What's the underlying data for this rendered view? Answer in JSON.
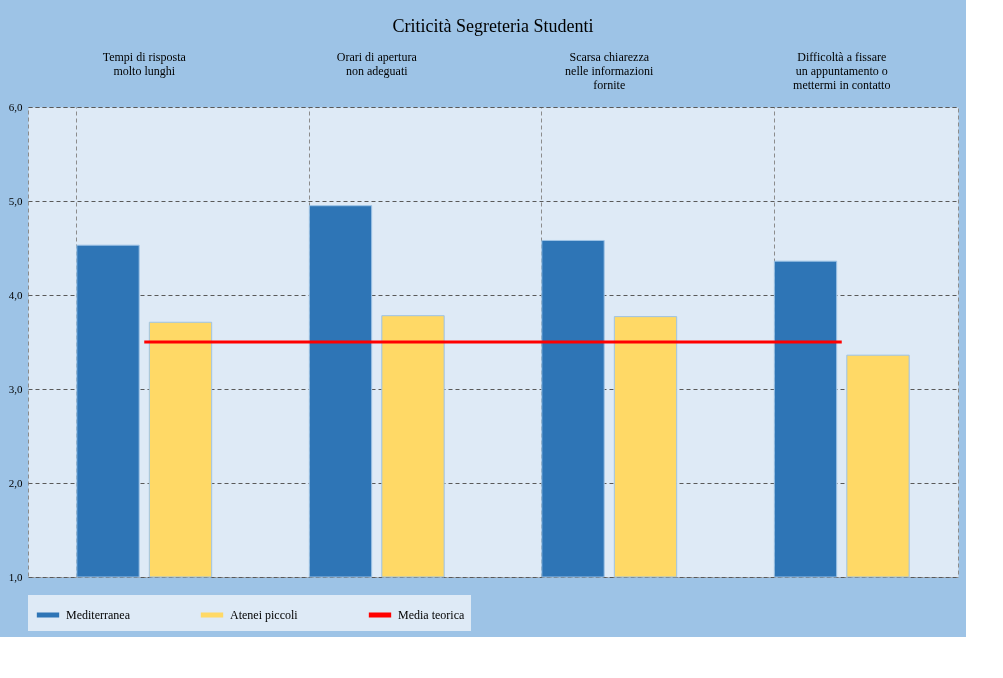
{
  "chart_data": {
    "type": "bar",
    "title": "Criticità Segreteria Studenti",
    "categories": [
      "Tempi di risposta\nmolto lunghi",
      "Orari di apertura\nnon adeguati",
      "Scarsa chiarezza\nnelle informazioni\nfornite",
      "Difficoltà a fissare\nun appuntamento o\nmettermi in contatto"
    ],
    "series": [
      {
        "name": "Mediterranea",
        "color": "#2e75b6",
        "values": [
          4.53,
          4.95,
          4.58,
          4.36
        ]
      },
      {
        "name": "Atenei piccoli",
        "color": "#ffd966",
        "values": [
          3.71,
          3.78,
          3.77,
          3.36
        ]
      },
      {
        "name": "Media teorica",
        "color": "#ff0000",
        "type": "line",
        "values": [
          3.5,
          3.5,
          3.5,
          3.5
        ]
      }
    ],
    "ylim": [
      1,
      6
    ],
    "yticks": [
      {
        "value": 1,
        "label": "1,0"
      },
      {
        "value": 2,
        "label": "2,0"
      },
      {
        "value": 3,
        "label": "3,0"
      },
      {
        "value": 4,
        "label": "4,0"
      },
      {
        "value": 5,
        "label": "5,0"
      },
      {
        "value": 6,
        "label": "6,0"
      }
    ],
    "grid": true,
    "legend": "bottom"
  }
}
